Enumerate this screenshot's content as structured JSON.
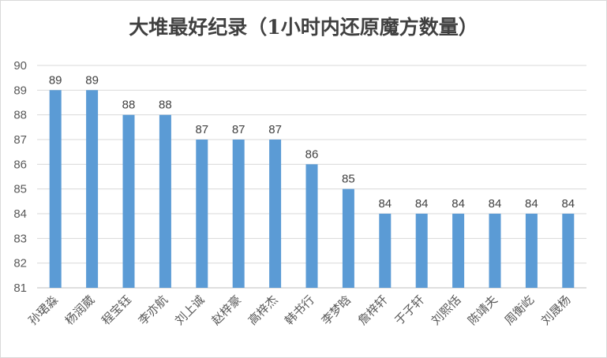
{
  "chart_data": {
    "type": "bar",
    "title": "大堆最好纪录（1小时内还原魔方数量）",
    "xlabel": "",
    "ylabel": "",
    "categories": [
      "孙珺淼",
      "杨润葳",
      "程宝钰",
      "李亦航",
      "刘上诚",
      "赵梓豪",
      "高梓杰",
      "韩书行",
      "李梦晗",
      "詹梓轩",
      "于子轩",
      "刘熙恬",
      "陈靖夫",
      "周衡屹",
      "刘晟杨"
    ],
    "values": [
      89,
      89,
      88,
      88,
      87,
      87,
      87,
      86,
      85,
      84,
      84,
      84,
      84,
      84,
      84
    ],
    "ylim": [
      81,
      90
    ],
    "yticks": [
      81,
      82,
      83,
      84,
      85,
      86,
      87,
      88,
      89,
      90
    ],
    "bar_color": "#5b9bd5",
    "grid": true,
    "legend": false,
    "data_labels": true
  }
}
